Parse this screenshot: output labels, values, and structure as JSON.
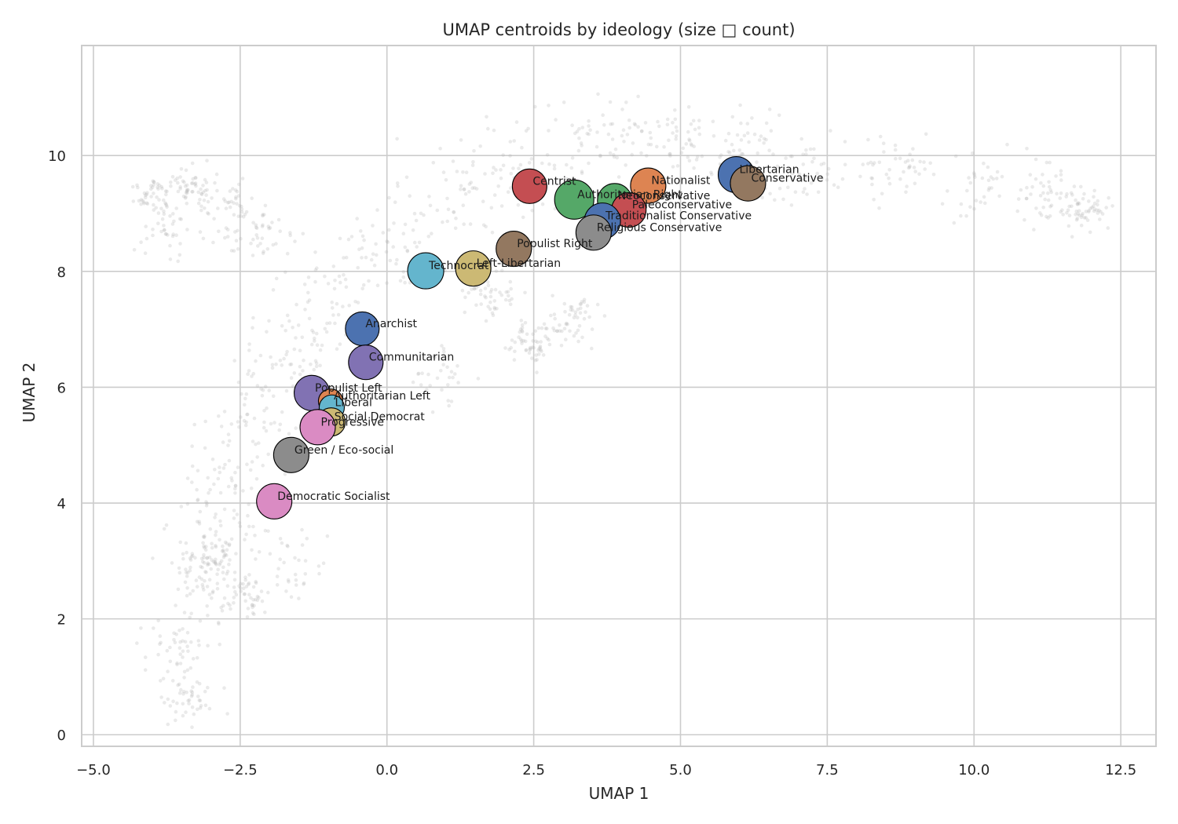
{
  "chart_data": {
    "type": "scatter",
    "title": "UMAP centroids by ideology (size □ count)",
    "xlabel": "UMAP 1",
    "ylabel": "UMAP 2",
    "xlim": [
      -5.2,
      13.1
    ],
    "ylim": [
      -0.2,
      11.9
    ],
    "xticks": [
      -5.0,
      -2.5,
      0.0,
      2.5,
      5.0,
      7.5,
      10.0,
      12.5
    ],
    "xtick_labels": [
      "−5.0",
      "−2.5",
      "0.0",
      "2.5",
      "5.0",
      "7.5",
      "10.0",
      "12.5"
    ],
    "yticks": [
      0,
      2,
      4,
      6,
      8,
      10
    ],
    "ytick_labels": [
      "0",
      "2",
      "4",
      "6",
      "8",
      "10"
    ],
    "grid": true,
    "background_points_color": "#b3b3b3",
    "centroids": [
      {
        "label": "Centrist",
        "x": 2.43,
        "y": 9.47,
        "color": "#c44e52",
        "size": 1.0
      },
      {
        "label": "Authoritarian Right",
        "x": 3.19,
        "y": 9.24,
        "color": "#55a868",
        "size": 1.3
      },
      {
        "label": "Neoconservative",
        "x": 3.88,
        "y": 9.22,
        "color": "#55a868",
        "size": 1.0
      },
      {
        "label": "Nationalist",
        "x": 4.45,
        "y": 9.48,
        "color": "#dd8452",
        "size": 1.05
      },
      {
        "label": "Paleoconservative",
        "x": 4.12,
        "y": 9.06,
        "color": "#c44e52",
        "size": 1.0
      },
      {
        "label": "Traditionalist Conservative",
        "x": 3.67,
        "y": 8.87,
        "color": "#4c72b0",
        "size": 1.1
      },
      {
        "label": "Religious Conservative",
        "x": 3.52,
        "y": 8.67,
        "color": "#8c8c8c",
        "size": 1.05
      },
      {
        "label": "Libertarian",
        "x": 5.95,
        "y": 9.67,
        "color": "#4c72b0",
        "size": 1.1
      },
      {
        "label": "Conservative",
        "x": 6.15,
        "y": 9.52,
        "color": "#937860",
        "size": 1.05
      },
      {
        "label": "Populist Right",
        "x": 2.16,
        "y": 8.39,
        "color": "#937860",
        "size": 1.05
      },
      {
        "label": "Technocrat",
        "x": 0.66,
        "y": 8.01,
        "color": "#64b5cd",
        "size": 1.1
      },
      {
        "label": "Left-Libertarian",
        "x": 1.47,
        "y": 8.05,
        "color": "#ccb974",
        "size": 1.05
      },
      {
        "label": "Anarchist",
        "x": -0.42,
        "y": 7.01,
        "color": "#4c72b0",
        "size": 0.95
      },
      {
        "label": "Communitarian",
        "x": -0.36,
        "y": 6.43,
        "color": "#8172b3",
        "size": 1.0
      },
      {
        "label": "Populist Left",
        "x": -1.28,
        "y": 5.9,
        "color": "#8172b3",
        "size": 1.05
      },
      {
        "label": "Authoritarian Left",
        "x": -0.96,
        "y": 5.76,
        "color": "#dd8452",
        "size": 0.35
      },
      {
        "label": "Liberal",
        "x": -0.94,
        "y": 5.65,
        "color": "#64b5cd",
        "size": 0.4
      },
      {
        "label": "Social Democrat",
        "x": -0.95,
        "y": 5.4,
        "color": "#ccb974",
        "size": 0.6
      },
      {
        "label": "Progressive",
        "x": -1.18,
        "y": 5.31,
        "color": "#da8bc3",
        "size": 1.05
      },
      {
        "label": "Green / Eco-social",
        "x": -1.63,
        "y": 4.83,
        "color": "#8c8c8c",
        "size": 1.05
      },
      {
        "label": "Democratic Socialist",
        "x": -1.92,
        "y": 4.03,
        "color": "#da8bc3",
        "size": 1.05
      }
    ]
  }
}
